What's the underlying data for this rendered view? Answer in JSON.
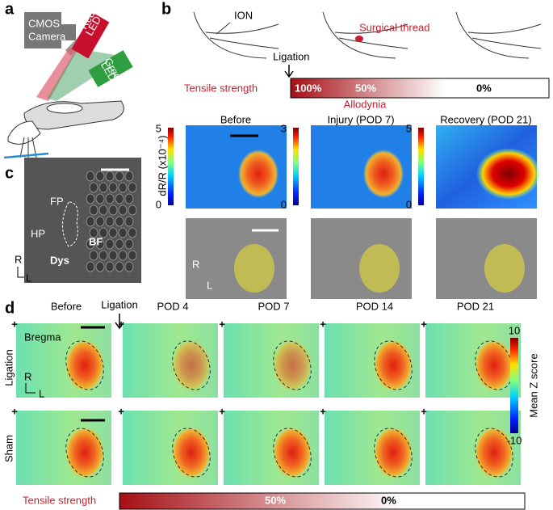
{
  "panel_labels": [
    "a",
    "b",
    "c",
    "d"
  ],
  "setup": {
    "camera": [
      "CMOS",
      "Camera"
    ],
    "red_led": [
      "Red",
      "LED"
    ],
    "green_led": [
      "Green",
      "LED"
    ]
  },
  "panel_b": {
    "nerve": "ION",
    "thread": "Surgical thread",
    "ligation": "Ligation",
    "tensile_label": "Tensile strength",
    "tensile_marks": [
      "100%",
      "50%",
      "0%"
    ],
    "allodynia": "Allodynia",
    "columns": [
      "Before",
      "Injury (POD 7)",
      "Recovery (POD 21)"
    ],
    "colorbar_ticks": [
      [
        "5",
        "0"
      ],
      [
        "3",
        "0"
      ],
      [
        "5",
        "0"
      ]
    ],
    "colorbar_label": "dR/R (x10⁻⁴)",
    "axes": [
      "R",
      "L"
    ]
  },
  "panel_c": {
    "labels": [
      "FP",
      "HP",
      "Dys",
      "BF"
    ],
    "axes": [
      "R",
      "L"
    ]
  },
  "panel_d": {
    "columns": [
      "Before",
      "POD 4",
      "POD 7",
      "POD 14",
      "POD 21"
    ],
    "ligation": "Ligation",
    "bregma": "Bregma",
    "rows": [
      "Ligation",
      "Sham"
    ],
    "axes": [
      "R",
      "L"
    ],
    "colorbar_ticks": [
      "10",
      "-10"
    ],
    "colorbar_label": "Mean Z score",
    "tensile_label": "Tensile strength",
    "tensile_marks": [
      "50%",
      "0%"
    ]
  }
}
